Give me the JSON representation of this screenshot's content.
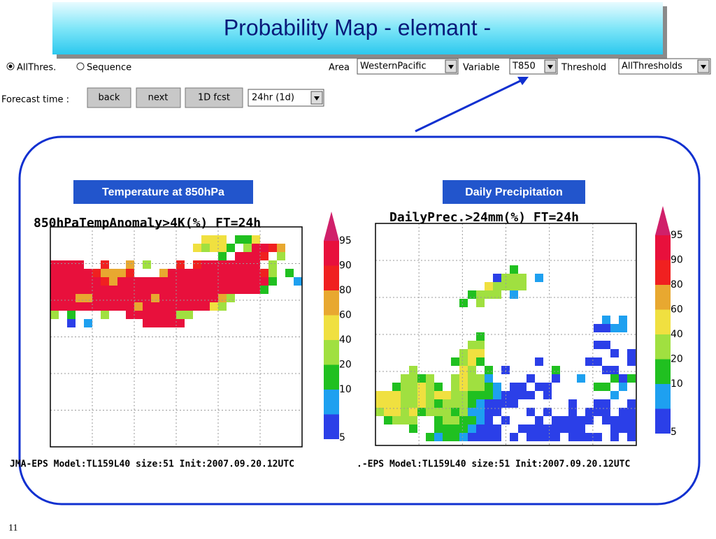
{
  "header": {
    "title": "Probability Map  - elemant -"
  },
  "controls": {
    "mode_options": [
      "AllThres.",
      "Sequence"
    ],
    "area_label": "Area",
    "area_value": "WesternPacific",
    "variable_label": "Variable",
    "variable_value": "T850",
    "threshold_label": "Threshold",
    "threshold_value": "AllThresholds",
    "forecast_label": "Forecast time :",
    "buttons": [
      "back",
      "next",
      "1D fcst"
    ],
    "forecast_value": "24hr (1d)"
  },
  "maps": [
    {
      "label": "Temperature at  850hPa",
      "title": "850hPaTempAnomaly>4K(%)  FT=24h",
      "footer": "JMA-EPS Model:TL159L40 size:51 Init:2007.09.20.12UTC",
      "levels": [
        95,
        90,
        80,
        60,
        40,
        20,
        10,
        5
      ],
      "colors": [
        "#e8103c",
        "#f02020",
        "#e8a830",
        "#f0e040",
        "#a0e040",
        "#20c020",
        "#1ea0f0",
        "#2b3fe8"
      ]
    },
    {
      "label": "Daily Precipitation",
      "title": "DailyPrec.>24mm(%)  FT=24h",
      "footer": ".-EPS Model:TL159L40 size:51 Init:2007.09.20.12UTC",
      "levels": [
        95,
        90,
        80,
        60,
        40,
        20,
        10,
        5
      ],
      "colors": [
        "#e8103c",
        "#f02020",
        "#e8a830",
        "#f0e040",
        "#a0e040",
        "#20c020",
        "#1ea0f0",
        "#2b3fe8"
      ]
    }
  ],
  "footer": {
    "slide_number": "11"
  }
}
